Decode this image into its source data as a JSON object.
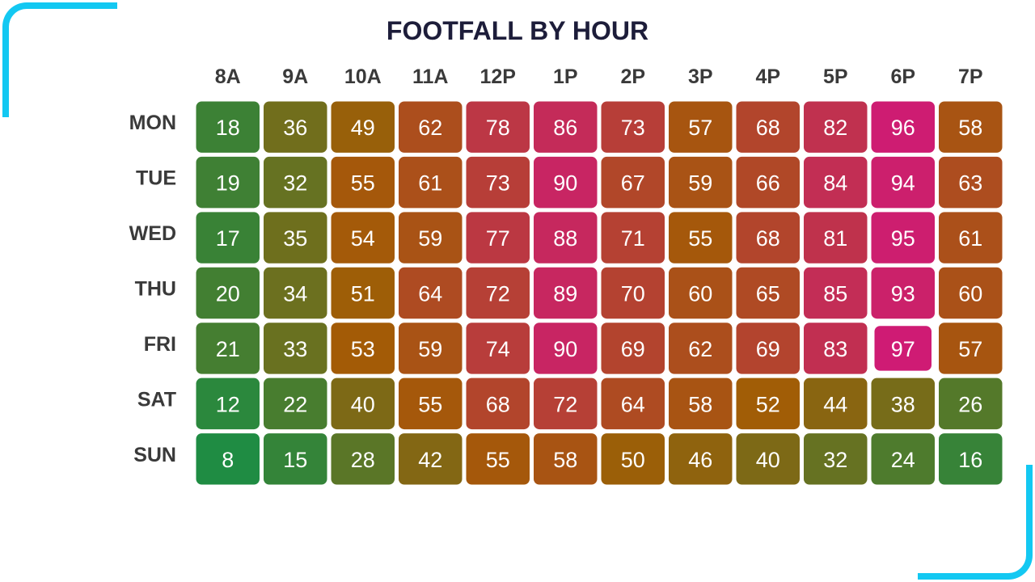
{
  "chart_data": {
    "type": "heatmap",
    "title": "FOOTFALL BY HOUR",
    "x_categories": [
      "8A",
      "9A",
      "10A",
      "11A",
      "12P",
      "1P",
      "2P",
      "3P",
      "4P",
      "5P",
      "6P",
      "7P"
    ],
    "y_categories": [
      "MON",
      "TUE",
      "WED",
      "THU",
      "FRI",
      "SAT",
      "SUN"
    ],
    "values": [
      [
        18,
        36,
        49,
        62,
        78,
        86,
        73,
        57,
        68,
        82,
        96,
        58
      ],
      [
        19,
        32,
        55,
        61,
        73,
        90,
        67,
        59,
        66,
        84,
        94,
        63
      ],
      [
        17,
        35,
        54,
        59,
        77,
        88,
        71,
        55,
        68,
        81,
        95,
        61
      ],
      [
        20,
        34,
        51,
        64,
        72,
        89,
        70,
        60,
        65,
        85,
        93,
        60
      ],
      [
        21,
        33,
        53,
        59,
        74,
        90,
        69,
        62,
        69,
        83,
        97,
        57
      ],
      [
        12,
        22,
        40,
        55,
        68,
        72,
        64,
        58,
        52,
        44,
        38,
        26
      ],
      [
        8,
        15,
        28,
        42,
        55,
        58,
        50,
        46,
        40,
        32,
        24,
        16
      ]
    ],
    "highlight_cell": {
      "row": "FRI",
      "col": "6P"
    },
    "color_scale": [
      "#1f8c43",
      "#a25c05",
      "#cf1b74"
    ],
    "legend": "none"
  },
  "colors": {
    "accent": "#13c8f2",
    "title": "#1d1d3a",
    "label": "#3a3a3a"
  }
}
